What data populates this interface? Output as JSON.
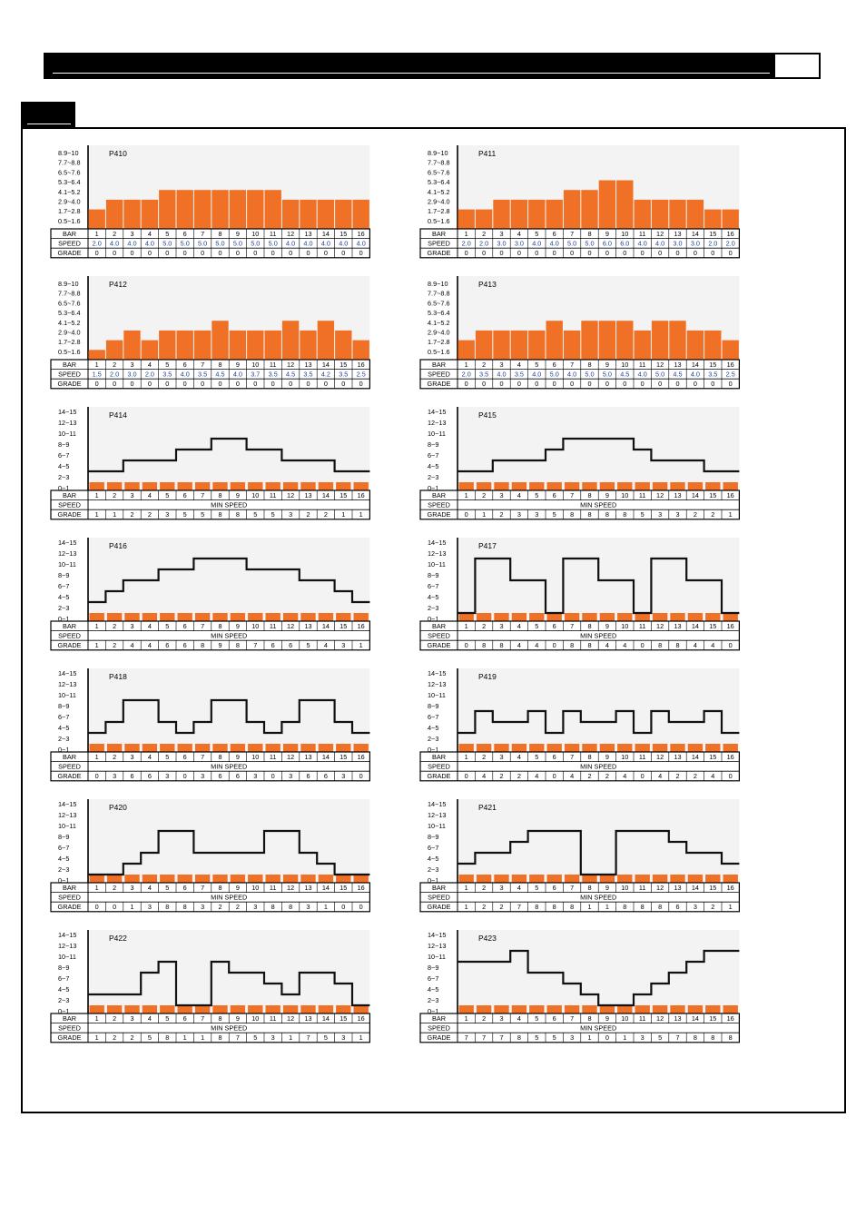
{
  "page": {
    "header_box_text": "",
    "section_tab_text": ""
  },
  "colors": {
    "bar": "#f07126",
    "line": "#111111",
    "speed_text": "#1f3f9a",
    "panel": "#f3f3f3"
  },
  "chart_data": [
    {
      "id": "P410",
      "type": "bar",
      "title": "P410",
      "y_levels": [
        "8.9~10",
        "7.7~8.8",
        "6.5~7.6",
        "5.3~6.4",
        "4.1~5.2",
        "2.9~4.0",
        "1.7~2.8",
        "0.5~1.6"
      ],
      "bars": [
        2,
        3,
        3,
        3,
        4,
        4,
        4,
        4,
        4,
        4,
        4,
        3,
        3,
        3,
        3,
        3
      ],
      "row_labels": [
        "BAR",
        "SPEED",
        "GRADE"
      ],
      "bar_numbers": [
        "1",
        "2",
        "3",
        "4",
        "5",
        "6",
        "7",
        "8",
        "9",
        "10",
        "11",
        "12",
        "13",
        "14",
        "15",
        "16"
      ],
      "speed": [
        "2.0",
        "4.0",
        "4.0",
        "4.0",
        "5.0",
        "5.0",
        "5.0",
        "5.0",
        "5.0",
        "5.0",
        "5.0",
        "4.0",
        "4.0",
        "4.0",
        "4.0",
        "4.0"
      ],
      "grade": [
        "0",
        "0",
        "0",
        "0",
        "0",
        "0",
        "0",
        "0",
        "0",
        "0",
        "0",
        "0",
        "0",
        "0",
        "0",
        "0"
      ]
    },
    {
      "id": "P411",
      "type": "bar",
      "title": "P411",
      "y_levels": [
        "8.9~10",
        "7.7~8.8",
        "6.5~7.6",
        "5.3~6.4",
        "4.1~5.2",
        "2.9~4.0",
        "1.7~2.8",
        "0.5~1.6"
      ],
      "bars": [
        2,
        2,
        3,
        3,
        3,
        3,
        4,
        4,
        5,
        5,
        3,
        3,
        3,
        3,
        2,
        2
      ],
      "row_labels": [
        "BAR",
        "SPEED",
        "GRADE"
      ],
      "bar_numbers": [
        "1",
        "2",
        "3",
        "4",
        "5",
        "6",
        "7",
        "8",
        "9",
        "10",
        "11",
        "12",
        "13",
        "14",
        "15",
        "16"
      ],
      "speed": [
        "2.0",
        "2.0",
        "3.0",
        "3.0",
        "4.0",
        "4.0",
        "5.0",
        "5.0",
        "6.0",
        "6.0",
        "4.0",
        "4.0",
        "3.0",
        "3.0",
        "2.0",
        "2.0"
      ],
      "grade": [
        "0",
        "0",
        "0",
        "0",
        "0",
        "0",
        "0",
        "0",
        "0",
        "0",
        "0",
        "0",
        "0",
        "0",
        "0",
        "0"
      ]
    },
    {
      "id": "P412",
      "type": "bar",
      "title": "P412",
      "y_levels": [
        "8.9~10",
        "7.7~8.8",
        "6.5~7.6",
        "5.3~6.4",
        "4.1~5.2",
        "2.9~4.0",
        "1.7~2.8",
        "0.5~1.6"
      ],
      "bars": [
        1,
        2,
        3,
        2,
        3,
        3,
        3,
        4,
        3,
        3,
        3,
        4,
        3,
        4,
        3,
        2
      ],
      "row_labels": [
        "BAR",
        "SPEED",
        "GRADE"
      ],
      "bar_numbers": [
        "1",
        "2",
        "3",
        "4",
        "5",
        "6",
        "7",
        "8",
        "9",
        "10",
        "11",
        "12",
        "13",
        "14",
        "15",
        "16"
      ],
      "speed": [
        "1.5",
        "2.0",
        "3.0",
        "2.0",
        "3.5",
        "4.0",
        "3.5",
        "4.5",
        "4.0",
        "3.7",
        "3.5",
        "4.5",
        "3.5",
        "4.2",
        "3.5",
        "2.5"
      ],
      "grade": [
        "0",
        "0",
        "0",
        "0",
        "0",
        "0",
        "0",
        "0",
        "0",
        "0",
        "0",
        "0",
        "0",
        "0",
        "0",
        "0"
      ]
    },
    {
      "id": "P413",
      "type": "bar",
      "title": "P413",
      "y_levels": [
        "8.9~10",
        "7.7~8.8",
        "6.5~7.6",
        "5.3~6.4",
        "4.1~5.2",
        "2.9~4.0",
        "1.7~2.8",
        "0.5~1.6"
      ],
      "bars": [
        2,
        3,
        3,
        3,
        3,
        4,
        3,
        4,
        4,
        4,
        3,
        4,
        4,
        3,
        3,
        2
      ],
      "row_labels": [
        "BAR",
        "SPEED",
        "GRADE"
      ],
      "bar_numbers": [
        "1",
        "2",
        "3",
        "4",
        "5",
        "6",
        "7",
        "8",
        "9",
        "10",
        "11",
        "12",
        "13",
        "14",
        "15",
        "16"
      ],
      "speed": [
        "2.0",
        "3.5",
        "4.0",
        "3.5",
        "4.0",
        "5.0",
        "4.0",
        "5.0",
        "5.0",
        "4.5",
        "4.0",
        "5.0",
        "4.5",
        "4.0",
        "3.5",
        "2.5"
      ],
      "grade": [
        "0",
        "0",
        "0",
        "0",
        "0",
        "0",
        "0",
        "0",
        "0",
        "0",
        "0",
        "0",
        "0",
        "0",
        "0",
        "0"
      ]
    },
    {
      "id": "P414",
      "type": "grade",
      "title": "P414",
      "y_levels": [
        "14~15",
        "12~13",
        "10~11",
        "8~9",
        "6~7",
        "4~5",
        "2~3",
        "0~1"
      ],
      "levels": [
        1,
        1,
        2,
        2,
        2,
        3,
        3,
        4,
        4,
        3,
        3,
        2,
        2,
        2,
        1,
        1
      ],
      "row_labels": [
        "BAR",
        "SPEED",
        "GRADE"
      ],
      "speed_text": "MIN SPEED",
      "bar_numbers": [
        "1",
        "2",
        "3",
        "4",
        "5",
        "6",
        "7",
        "8",
        "9",
        "10",
        "11",
        "12",
        "13",
        "14",
        "15",
        "16"
      ],
      "grade": [
        "1",
        "1",
        "2",
        "2",
        "3",
        "5",
        "5",
        "8",
        "8",
        "5",
        "5",
        "3",
        "2",
        "2",
        "1",
        "1"
      ]
    },
    {
      "id": "P415",
      "type": "grade",
      "title": "P415",
      "y_levels": [
        "14~15",
        "12~13",
        "10~11",
        "8~9",
        "6~7",
        "4~5",
        "2~3",
        "0~1"
      ],
      "levels": [
        1,
        1,
        2,
        2,
        2,
        3,
        4,
        4,
        4,
        4,
        3,
        2,
        2,
        2,
        1,
        1
      ],
      "row_labels": [
        "BAR",
        "SPEED",
        "GRADE"
      ],
      "speed_text": "MIN SPEED",
      "bar_numbers": [
        "1",
        "2",
        "3",
        "4",
        "5",
        "6",
        "7",
        "8",
        "9",
        "10",
        "11",
        "12",
        "13",
        "14",
        "15",
        "16"
      ],
      "grade": [
        "0",
        "1",
        "2",
        "3",
        "3",
        "5",
        "8",
        "8",
        "8",
        "8",
        "5",
        "3",
        "3",
        "2",
        "2",
        "1"
      ]
    },
    {
      "id": "P416",
      "type": "grade",
      "title": "P416",
      "y_levels": [
        "14~15",
        "12~13",
        "10~11",
        "8~9",
        "6~7",
        "4~5",
        "2~3",
        "0~1"
      ],
      "levels": [
        1,
        2,
        3,
        3,
        4,
        4,
        5,
        5,
        5,
        4,
        4,
        4,
        3,
        3,
        2,
        1
      ],
      "row_labels": [
        "BAR",
        "SPEED",
        "GRADE"
      ],
      "speed_text": "MIN SPEED",
      "bar_numbers": [
        "1",
        "2",
        "3",
        "4",
        "5",
        "6",
        "7",
        "8",
        "9",
        "10",
        "11",
        "12",
        "13",
        "14",
        "15",
        "16"
      ],
      "grade": [
        "1",
        "2",
        "4",
        "4",
        "6",
        "6",
        "8",
        "9",
        "8",
        "7",
        "6",
        "6",
        "5",
        "4",
        "3",
        "1"
      ]
    },
    {
      "id": "P417",
      "type": "grade",
      "title": "P417",
      "y_levels": [
        "14~15",
        "12~13",
        "10~11",
        "8~9",
        "6~7",
        "4~5",
        "2~3",
        "0~1"
      ],
      "levels": [
        0,
        5,
        5,
        3,
        3,
        0,
        5,
        5,
        3,
        3,
        0,
        5,
        5,
        3,
        3,
        0
      ],
      "row_labels": [
        "BAR",
        "SPEED",
        "GRADE"
      ],
      "speed_text": "MIN SPEED",
      "bar_numbers": [
        "1",
        "2",
        "3",
        "4",
        "5",
        "6",
        "7",
        "8",
        "9",
        "10",
        "11",
        "12",
        "13",
        "14",
        "15",
        "16"
      ],
      "grade": [
        "0",
        "8",
        "8",
        "4",
        "4",
        "0",
        "8",
        "8",
        "4",
        "4",
        "0",
        "8",
        "8",
        "4",
        "4",
        "0"
      ]
    },
    {
      "id": "P418",
      "type": "grade",
      "title": "P418",
      "y_levels": [
        "14~15",
        "12~13",
        "10~11",
        "8~9",
        "6~7",
        "4~5",
        "2~3",
        "0~1"
      ],
      "levels": [
        1,
        2,
        4,
        4,
        2,
        1,
        2,
        4,
        4,
        2,
        1,
        2,
        4,
        4,
        2,
        1
      ],
      "row_labels": [
        "BAR",
        "SPEED",
        "GRADE"
      ],
      "speed_text": "MIN SPEED",
      "bar_numbers": [
        "1",
        "2",
        "3",
        "4",
        "5",
        "6",
        "7",
        "8",
        "9",
        "10",
        "11",
        "12",
        "13",
        "14",
        "15",
        "16"
      ],
      "grade": [
        "0",
        "3",
        "6",
        "6",
        "3",
        "0",
        "3",
        "6",
        "6",
        "3",
        "0",
        "3",
        "6",
        "6",
        "3",
        "0"
      ]
    },
    {
      "id": "P419",
      "type": "grade",
      "title": "P419",
      "y_levels": [
        "14~15",
        "12~13",
        "10~11",
        "8~9",
        "6~7",
        "4~5",
        "2~3",
        "0~1"
      ],
      "levels": [
        1,
        3,
        2,
        2,
        3,
        1,
        3,
        2,
        2,
        3,
        1,
        3,
        2,
        2,
        3,
        1
      ],
      "row_labels": [
        "BAR",
        "SPEED",
        "GRADE"
      ],
      "speed_text": "MIN SPEED",
      "bar_numbers": [
        "1",
        "2",
        "3",
        "4",
        "5",
        "6",
        "7",
        "8",
        "9",
        "10",
        "11",
        "12",
        "13",
        "14",
        "15",
        "16"
      ],
      "grade": [
        "0",
        "4",
        "2",
        "2",
        "4",
        "0",
        "4",
        "2",
        "2",
        "4",
        "0",
        "4",
        "2",
        "2",
        "4",
        "0"
      ]
    },
    {
      "id": "P420",
      "type": "grade",
      "title": "P420",
      "y_levels": [
        "14~15",
        "12~13",
        "10~11",
        "8~9",
        "6~7",
        "4~5",
        "2~3",
        "0~1"
      ],
      "levels": [
        0,
        0,
        1,
        2,
        4,
        4,
        2,
        2,
        2,
        2,
        4,
        4,
        2,
        1,
        0,
        0
      ],
      "row_labels": [
        "BAR",
        "SPEED",
        "GRADE"
      ],
      "speed_text": "MIN SPEED",
      "bar_numbers": [
        "1",
        "2",
        "3",
        "4",
        "5",
        "6",
        "7",
        "8",
        "9",
        "10",
        "11",
        "12",
        "13",
        "14",
        "15",
        "16"
      ],
      "grade": [
        "0",
        "0",
        "1",
        "3",
        "8",
        "8",
        "3",
        "2",
        "2",
        "3",
        "8",
        "8",
        "3",
        "1",
        "0",
        "0"
      ]
    },
    {
      "id": "P421",
      "type": "grade",
      "title": "P421",
      "y_levels": [
        "14~15",
        "12~13",
        "10~11",
        "8~9",
        "6~7",
        "4~5",
        "2~3",
        "0~1"
      ],
      "levels": [
        1,
        2,
        2,
        3,
        4,
        4,
        4,
        0,
        0,
        4,
        4,
        4,
        3,
        2,
        2,
        1
      ],
      "row_labels": [
        "BAR",
        "SPEED",
        "GRADE"
      ],
      "speed_text": "MIN SPEED",
      "bar_numbers": [
        "1",
        "2",
        "3",
        "4",
        "5",
        "6",
        "7",
        "8",
        "9",
        "10",
        "11",
        "12",
        "13",
        "14",
        "15",
        "16"
      ],
      "grade": [
        "1",
        "2",
        "2",
        "7",
        "8",
        "8",
        "8",
        "1",
        "1",
        "8",
        "8",
        "8",
        "6",
        "3",
        "2",
        "1"
      ]
    },
    {
      "id": "P422",
      "type": "grade",
      "title": "P422",
      "y_levels": [
        "14~15",
        "12~13",
        "10~11",
        "8~9",
        "6~7",
        "4~5",
        "2~3",
        "0~1"
      ],
      "levels": [
        1,
        1,
        1,
        3,
        4,
        0,
        0,
        4,
        3,
        3,
        2,
        1,
        3,
        3,
        2,
        0
      ],
      "row_labels": [
        "BAR",
        "SPEED",
        "GRADE"
      ],
      "speed_text": "MIN SPEED",
      "bar_numbers": [
        "1",
        "2",
        "3",
        "4",
        "5",
        "6",
        "7",
        "8",
        "9",
        "10",
        "11",
        "12",
        "13",
        "14",
        "15",
        "16"
      ],
      "grade": [
        "1",
        "2",
        "2",
        "5",
        "8",
        "1",
        "1",
        "8",
        "7",
        "5",
        "3",
        "1",
        "7",
        "5",
        "3",
        "1"
      ]
    },
    {
      "id": "P423",
      "type": "grade",
      "title": "P423",
      "y_levels": [
        "14~15",
        "12~13",
        "10~11",
        "8~9",
        "6~7",
        "4~5",
        "2~3",
        "0~1"
      ],
      "levels": [
        4,
        4,
        4,
        5,
        3,
        3,
        2,
        1,
        0,
        0,
        1,
        2,
        3,
        4,
        5,
        5
      ],
      "row_labels": [
        "BAR",
        "SPEED",
        "GRADE"
      ],
      "speed_text": "MIN SPEED",
      "bar_numbers": [
        "1",
        "2",
        "3",
        "4",
        "5",
        "6",
        "7",
        "8",
        "9",
        "10",
        "11",
        "12",
        "13",
        "14",
        "15",
        "16"
      ],
      "grade": [
        "7",
        "7",
        "7",
        "8",
        "5",
        "5",
        "3",
        "1",
        "0",
        "1",
        "3",
        "5",
        "7",
        "8",
        "8",
        "8"
      ]
    }
  ]
}
